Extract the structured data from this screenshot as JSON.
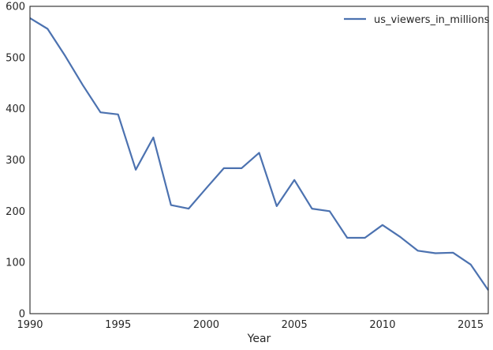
{
  "chart_data": {
    "type": "line",
    "xlabel": "Year",
    "ylabel": "",
    "xlim": [
      1990,
      2016
    ],
    "ylim": [
      0,
      600
    ],
    "xticks": [
      1990,
      1995,
      2000,
      2005,
      2010,
      2015
    ],
    "yticks": [
      0,
      100,
      200,
      300,
      400,
      500,
      600
    ],
    "grid": false,
    "legend_position": "top-right",
    "series": [
      {
        "name": "us_viewers_in_millions",
        "color": "#4c72b0",
        "x": [
          1990,
          1991,
          1992,
          1993,
          1994,
          1995,
          1996,
          1997,
          1998,
          1999,
          2000,
          2001,
          2002,
          2003,
          2004,
          2005,
          2006,
          2007,
          2008,
          2009,
          2010,
          2011,
          2012,
          2013,
          2014,
          2015,
          2016
        ],
        "y": [
          577,
          556,
          503,
          446,
          393,
          389,
          281,
          344,
          212,
          205,
          245,
          284,
          284,
          314,
          210,
          261,
          205,
          200,
          148,
          148,
          173,
          150,
          123,
          118,
          119,
          96,
          46
        ]
      }
    ]
  }
}
